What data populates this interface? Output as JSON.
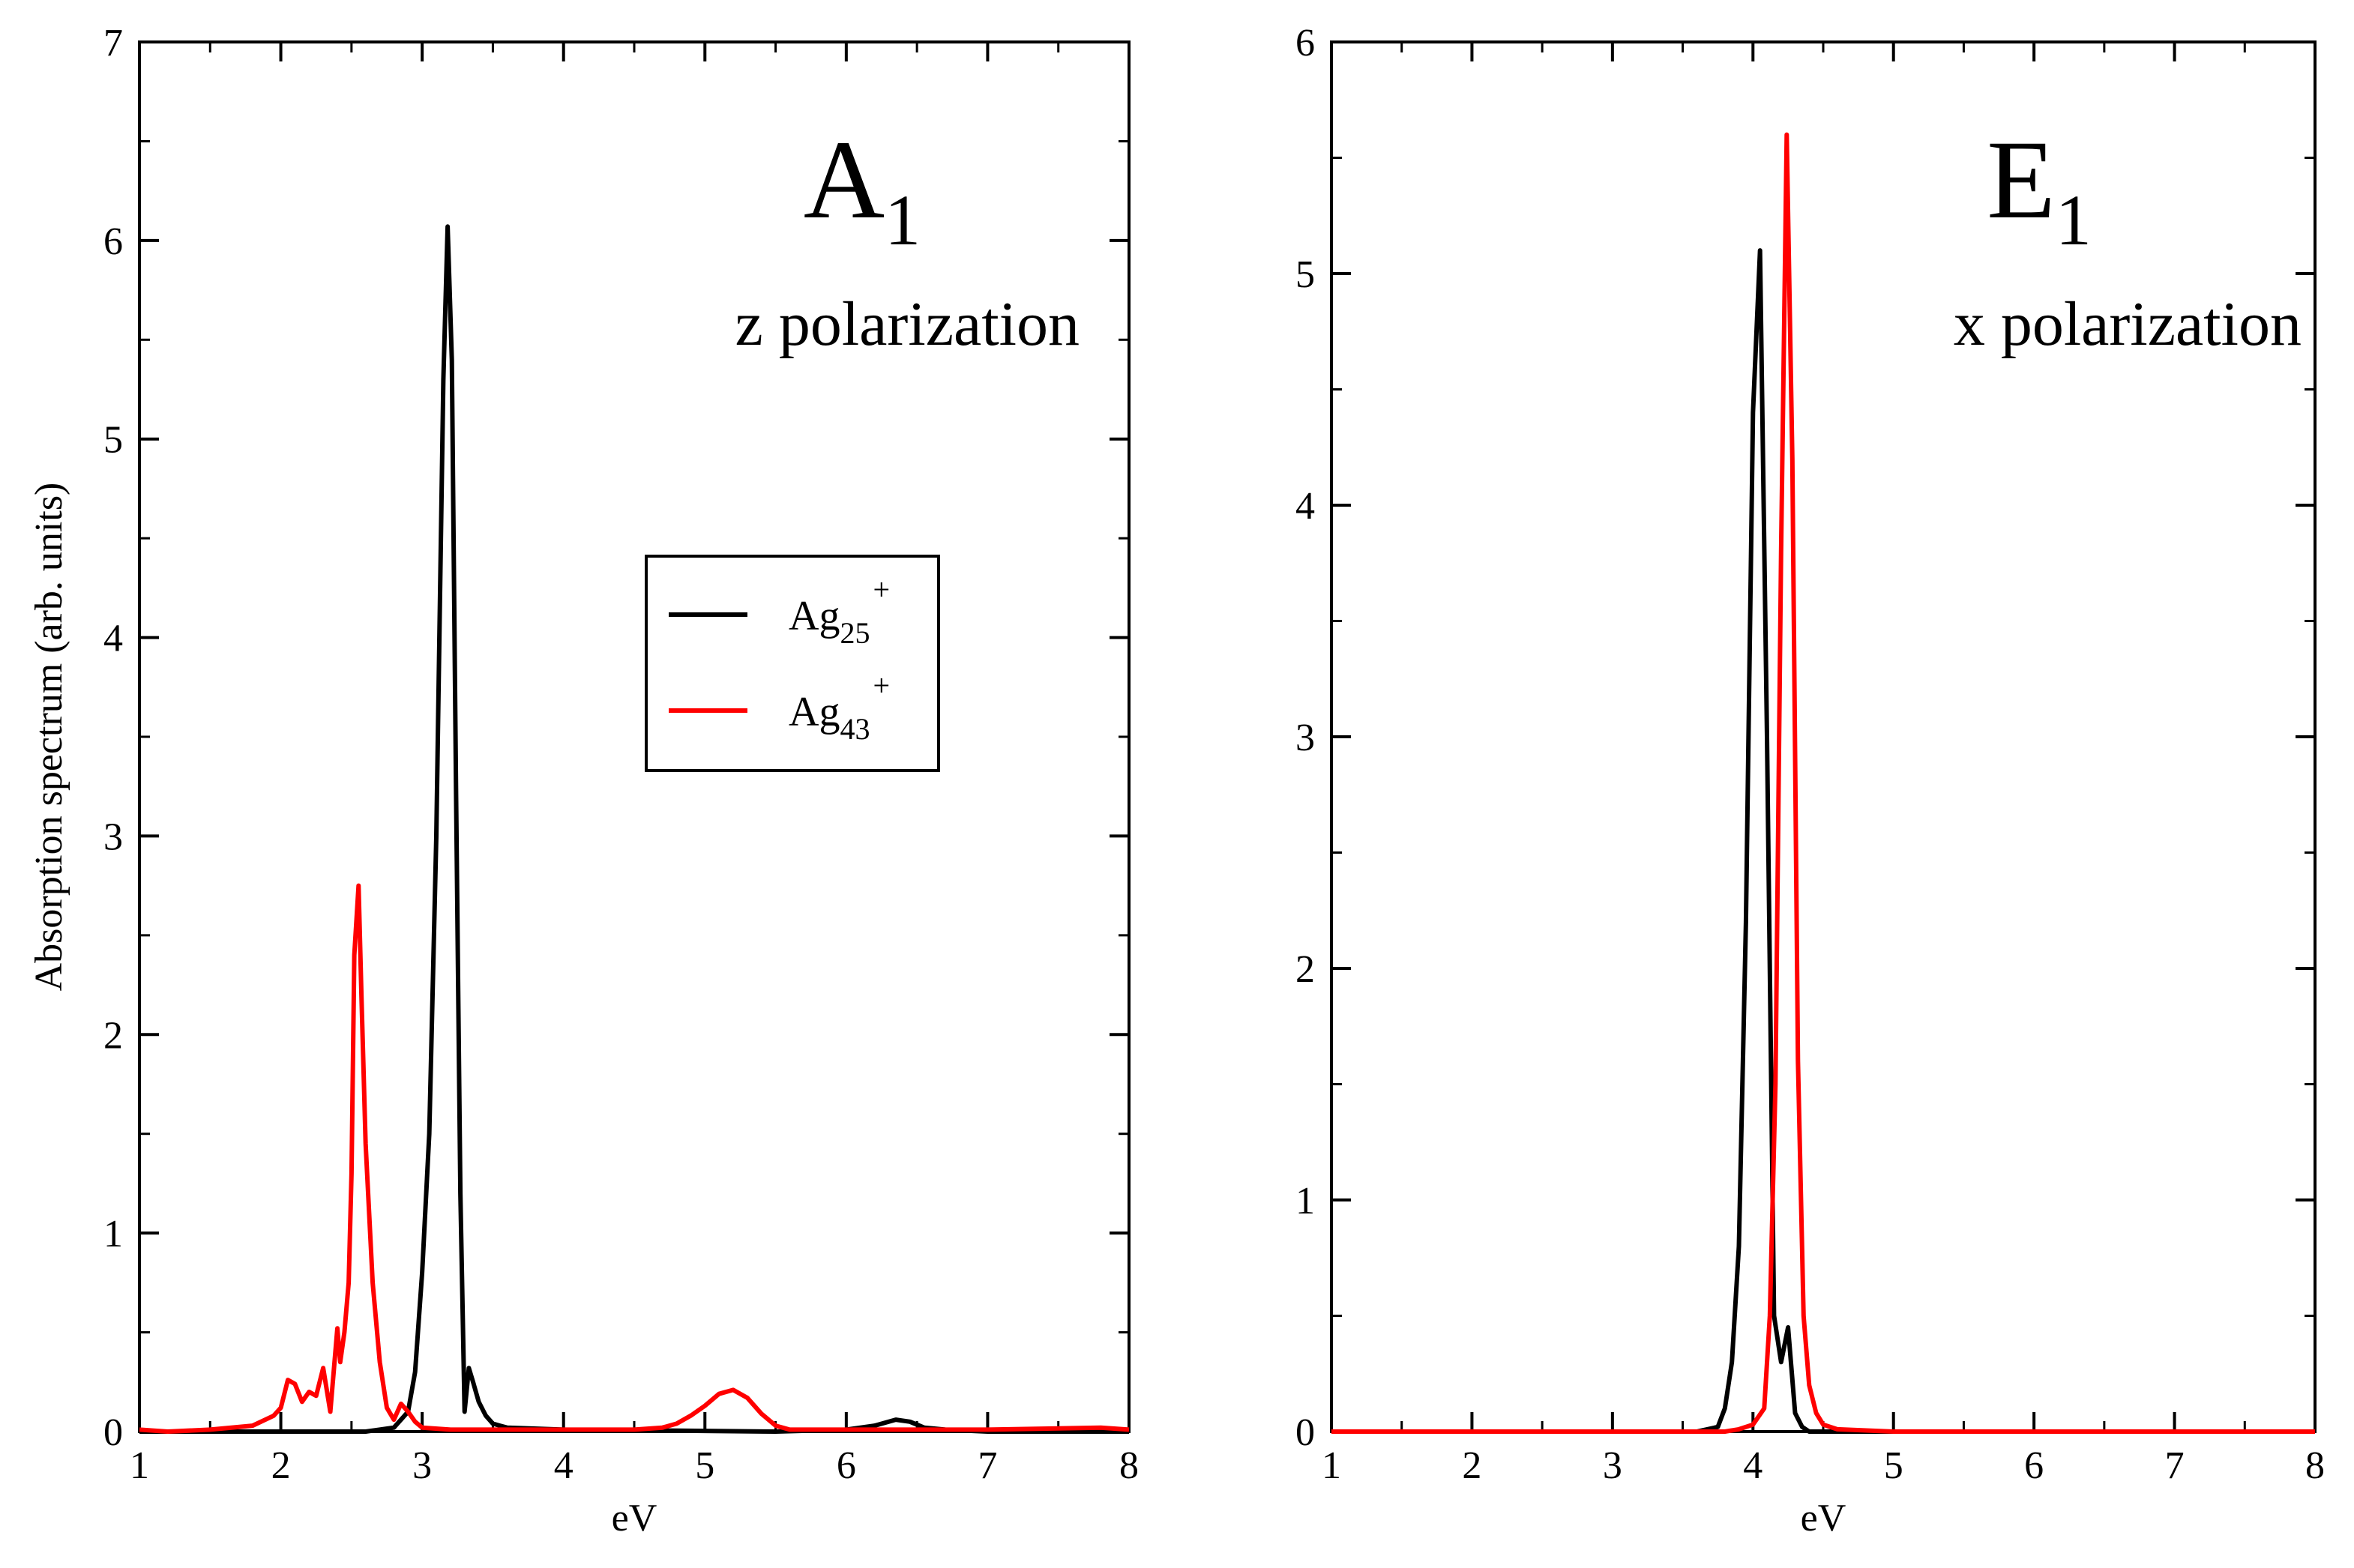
{
  "chart_data": [
    {
      "type": "line",
      "panel": "left",
      "title_main": "A",
      "title_sub": "1",
      "subtitle": "z polarization",
      "xlabel": "eV",
      "ylabel": "Absorption spectrum (arb. units)",
      "xlim": [
        1,
        8
      ],
      "ylim": [
        0,
        7
      ],
      "xticks": [
        "1",
        "2",
        "3",
        "4",
        "5",
        "6",
        "7",
        "8"
      ],
      "yticks": [
        "0",
        "1",
        "2",
        "3",
        "4",
        "5",
        "6",
        "7"
      ],
      "legend": {
        "placement": "center",
        "entries": [
          {
            "base": "Ag",
            "sub": "25",
            "sup": "+",
            "color": "#000000"
          },
          {
            "base": "Ag",
            "sub": "43",
            "sup": "+",
            "color": "#ff0000"
          }
        ]
      },
      "series": [
        {
          "name": "Ag25+",
          "color": "#000000",
          "x": [
            1.0,
            2.6,
            2.8,
            2.9,
            2.95,
            3.0,
            3.05,
            3.1,
            3.15,
            3.18,
            3.21,
            3.24,
            3.27,
            3.3,
            3.33,
            3.36,
            3.4,
            3.45,
            3.5,
            3.55,
            3.6,
            4.0,
            5.5,
            6.0,
            6.2,
            6.35,
            6.45,
            6.55,
            6.7,
            7.0,
            8.0
          ],
          "y": [
            0.0,
            0.0,
            0.02,
            0.1,
            0.3,
            0.8,
            1.5,
            3.0,
            5.3,
            6.07,
            5.4,
            3.2,
            1.2,
            0.1,
            0.32,
            0.25,
            0.15,
            0.08,
            0.04,
            0.03,
            0.02,
            0.01,
            0.0,
            0.01,
            0.03,
            0.06,
            0.05,
            0.02,
            0.01,
            0.0,
            0.0
          ]
        },
        {
          "name": "Ag43+",
          "color": "#ff0000",
          "x": [
            1.0,
            1.2,
            1.5,
            1.8,
            1.95,
            2.0,
            2.05,
            2.1,
            2.15,
            2.2,
            2.25,
            2.3,
            2.35,
            2.4,
            2.42,
            2.45,
            2.48,
            2.5,
            2.52,
            2.55,
            2.57,
            2.6,
            2.65,
            2.7,
            2.75,
            2.8,
            2.85,
            2.9,
            2.95,
            3.0,
            3.2,
            4.0,
            4.5,
            4.7,
            4.8,
            4.9,
            5.0,
            5.1,
            5.2,
            5.3,
            5.4,
            5.5,
            5.6,
            6.0,
            7.0,
            7.8,
            8.0
          ],
          "y": [
            0.01,
            0.0,
            0.01,
            0.03,
            0.08,
            0.12,
            0.26,
            0.24,
            0.15,
            0.2,
            0.18,
            0.32,
            0.1,
            0.52,
            0.35,
            0.5,
            0.75,
            1.3,
            2.4,
            2.75,
            2.2,
            1.45,
            0.75,
            0.35,
            0.12,
            0.06,
            0.14,
            0.1,
            0.05,
            0.02,
            0.01,
            0.01,
            0.01,
            0.02,
            0.04,
            0.08,
            0.13,
            0.19,
            0.21,
            0.17,
            0.09,
            0.03,
            0.01,
            0.01,
            0.01,
            0.02,
            0.01
          ]
        }
      ]
    },
    {
      "type": "line",
      "panel": "right",
      "title_main": "E",
      "title_sub": "1",
      "subtitle": "x polarization",
      "xlabel": "eV",
      "xlim": [
        1,
        8
      ],
      "ylim": [
        0,
        6
      ],
      "xticks": [
        "1",
        "2",
        "3",
        "4",
        "5",
        "6",
        "7",
        "8"
      ],
      "yticks": [
        "0",
        "1",
        "2",
        "3",
        "4",
        "5",
        "6"
      ],
      "series": [
        {
          "name": "Ag25+",
          "color": "#000000",
          "x": [
            1.0,
            3.6,
            3.75,
            3.8,
            3.85,
            3.9,
            3.95,
            4.0,
            4.05,
            4.1,
            4.15,
            4.2,
            4.25,
            4.3,
            4.35,
            4.4,
            4.6,
            8.0
          ],
          "y": [
            0.0,
            0.0,
            0.02,
            0.1,
            0.3,
            0.8,
            2.2,
            4.4,
            5.1,
            3.0,
            0.5,
            0.3,
            0.45,
            0.08,
            0.02,
            0.0,
            0.0,
            0.0
          ]
        },
        {
          "name": "Ag43+",
          "color": "#ff0000",
          "x": [
            1.0,
            3.8,
            3.9,
            4.0,
            4.08,
            4.12,
            4.16,
            4.2,
            4.24,
            4.28,
            4.32,
            4.36,
            4.4,
            4.45,
            4.5,
            4.6,
            5.0,
            6.0,
            8.0
          ],
          "y": [
            0.0,
            0.0,
            0.01,
            0.03,
            0.1,
            0.5,
            1.5,
            3.8,
            5.6,
            4.2,
            1.6,
            0.5,
            0.2,
            0.08,
            0.03,
            0.01,
            0.0,
            0.0,
            0.0
          ]
        }
      ]
    }
  ]
}
